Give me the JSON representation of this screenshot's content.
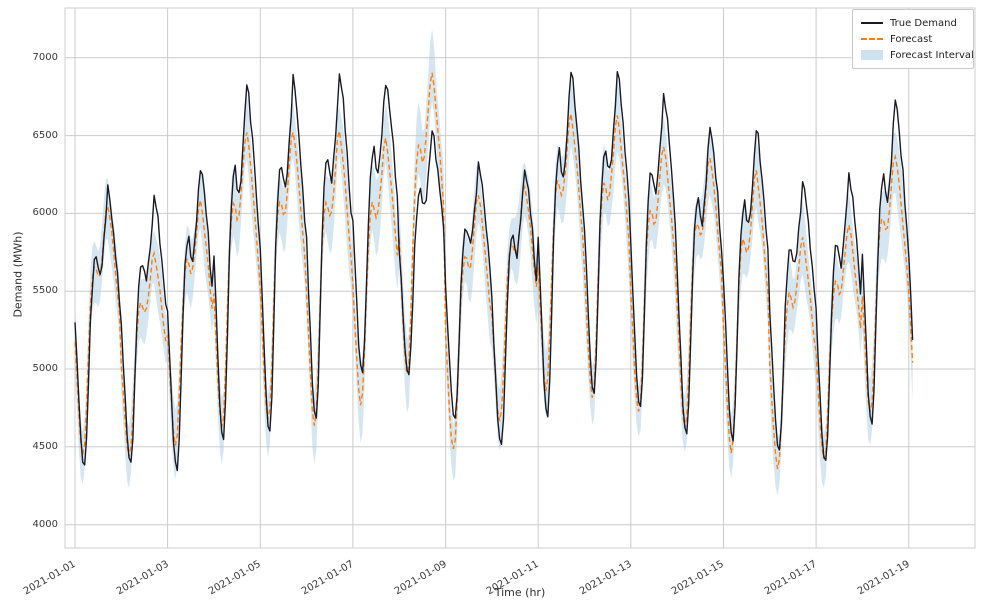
{
  "chart_data": {
    "type": "line",
    "title": "",
    "xlabel": "Time (hr)",
    "ylabel": "Demand (MWh)",
    "x_tick_labels": [
      "2021-01-01",
      "2021-01-03",
      "2021-01-05",
      "2021-01-07",
      "2021-01-09",
      "2021-01-11",
      "2021-01-13",
      "2021-01-15",
      "2021-01-17",
      "2021-01-19"
    ],
    "y_ticks": [
      4000,
      4500,
      5000,
      5500,
      6000,
      6500,
      7000
    ],
    "ylim": [
      3850,
      7320
    ],
    "grid": true,
    "sampling": "hourly",
    "legend": {
      "position": "upper right",
      "entries": [
        {
          "label": "True Demand",
          "type": "line",
          "color": "#1a1a26"
        },
        {
          "label": "Forecast",
          "type": "dashed-line",
          "color": "#ff7f0e"
        },
        {
          "label": "Forecast Interval",
          "type": "patch",
          "color": "#a5c8e1"
        }
      ]
    },
    "colors": {
      "true_demand": "#1a1a26",
      "forecast": "#ff7f0e",
      "interval": "#a5c8e1",
      "grid": "#cccccc",
      "frame": "#cfcfcf",
      "tick_text": "#3a3a3a"
    },
    "daily_shape": [
      0.52,
      0.38,
      0.24,
      0.1,
      0.02,
      0.0,
      0.1,
      0.3,
      0.52,
      0.66,
      0.74,
      0.76,
      0.71,
      0.69,
      0.74,
      0.82,
      0.91,
      1.0,
      0.97,
      0.91,
      0.84,
      0.77,
      0.68,
      0.6
    ],
    "days": [
      {
        "date": "2021-01-01",
        "true_min": 4380,
        "true_max": 6150,
        "forecast_min": 4430,
        "forecast_max": 6080,
        "interval_halfwidth": 190
      },
      {
        "date": "2021-01-02",
        "true_min": 4400,
        "true_max": 6100,
        "forecast_min": 4430,
        "forecast_max": 5760,
        "interval_halfwidth": 185
      },
      {
        "date": "2021-01-03",
        "true_min": 4350,
        "true_max": 6310,
        "forecast_min": 4500,
        "forecast_max": 6100,
        "interval_halfwidth": 190
      },
      {
        "date": "2021-01-04",
        "true_min": 4550,
        "true_max": 6830,
        "forecast_min": 4600,
        "forecast_max": 6550,
        "interval_halfwidth": 200
      },
      {
        "date": "2021-01-05",
        "true_min": 4600,
        "true_max": 6860,
        "forecast_min": 4650,
        "forecast_max": 6560,
        "interval_halfwidth": 200
      },
      {
        "date": "2021-01-06",
        "true_min": 4680,
        "true_max": 6900,
        "forecast_min": 4620,
        "forecast_max": 6560,
        "interval_halfwidth": 205
      },
      {
        "date": "2021-01-07",
        "true_min": 4980,
        "true_max": 6850,
        "forecast_min": 4760,
        "forecast_max": 6500,
        "interval_halfwidth": 210
      },
      {
        "date": "2021-01-08",
        "true_min": 4970,
        "true_max": 6520,
        "forecast_min": 4950,
        "forecast_max": 6930,
        "interval_halfwidth": 230
      },
      {
        "date": "2021-01-09",
        "true_min": 4680,
        "true_max": 6310,
        "forecast_min": 4460,
        "forecast_max": 6150,
        "interval_halfwidth": 200
      },
      {
        "date": "2021-01-10",
        "true_min": 4510,
        "true_max": 6290,
        "forecast_min": 4650,
        "forecast_max": 6200,
        "interval_halfwidth": 200
      },
      {
        "date": "2021-01-11",
        "true_min": 4700,
        "true_max": 6920,
        "forecast_min": 4850,
        "forecast_max": 6660,
        "interval_halfwidth": 210
      },
      {
        "date": "2021-01-12",
        "true_min": 4850,
        "true_max": 6900,
        "forecast_min": 4800,
        "forecast_max": 6650,
        "interval_halfwidth": 210
      },
      {
        "date": "2021-01-13",
        "true_min": 4750,
        "true_max": 6760,
        "forecast_min": 4700,
        "forecast_max": 6460,
        "interval_halfwidth": 205
      },
      {
        "date": "2021-01-14",
        "true_min": 4580,
        "true_max": 6560,
        "forecast_min": 4600,
        "forecast_max": 6390,
        "interval_halfwidth": 200
      },
      {
        "date": "2021-01-15",
        "true_min": 4550,
        "true_max": 6540,
        "forecast_min": 4450,
        "forecast_max": 6300,
        "interval_halfwidth": 200
      },
      {
        "date": "2021-01-16",
        "true_min": 4480,
        "true_max": 6200,
        "forecast_min": 4350,
        "forecast_max": 5860,
        "interval_halfwidth": 200
      },
      {
        "date": "2021-01-17",
        "true_min": 4400,
        "true_max": 6250,
        "forecast_min": 4400,
        "forecast_max": 5950,
        "interval_halfwidth": 200
      },
      {
        "date": "2021-01-18",
        "true_min": 4650,
        "true_max": 6730,
        "forecast_min": 4700,
        "forecast_max": 6400,
        "interval_halfwidth": 210
      },
      {
        "date": "2021-01-19",
        "true_min": 4700,
        "true_max": 6730,
        "forecast_min": 4750,
        "forecast_max": 6420,
        "interval_halfwidth": 210,
        "hours": 3
      }
    ]
  }
}
